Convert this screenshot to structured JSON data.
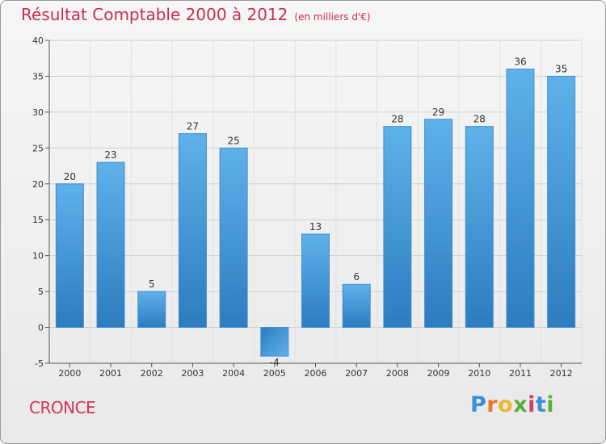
{
  "chart_data": {
    "type": "bar",
    "title": "Résultat Comptable 2000 à 2012",
    "subtitle": "(en milliers d'€)",
    "categories": [
      "2000",
      "2001",
      "2002",
      "2003",
      "2004",
      "2005",
      "2006",
      "2007",
      "2008",
      "2009",
      "2010",
      "2011",
      "2012"
    ],
    "values": [
      20,
      23,
      5,
      27,
      25,
      -4,
      13,
      6,
      28,
      29,
      28,
      36,
      35
    ],
    "ylim": [
      -5,
      40
    ],
    "yticks": [
      -5,
      0,
      5,
      10,
      15,
      20,
      25,
      30,
      35,
      40
    ],
    "xlabel": "",
    "ylabel": "",
    "grid": true
  },
  "footer": {
    "place": "CRONCE",
    "logo_letters": [
      "P",
      "r",
      "o",
      "x",
      "i",
      "t",
      "i"
    ]
  },
  "colors": {
    "title": "#c8304e",
    "bar_top": "#5fb1ea",
    "bar_bottom": "#2c7cbf",
    "logo": [
      "#3a8fd8",
      "#e8762b",
      "#f2b531",
      "#5bb03a",
      "#d43c6b",
      "#3a8fd8",
      "#5bb03a"
    ]
  }
}
